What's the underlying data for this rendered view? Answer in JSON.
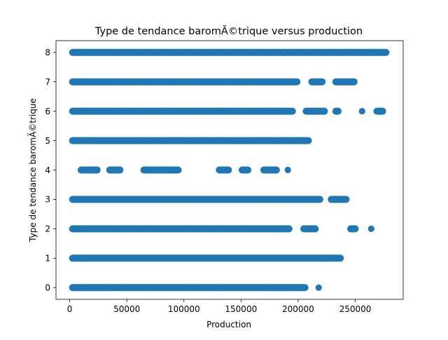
{
  "chart_data": {
    "type": "scatter",
    "title": "Type de tendance baromÃ©trique versus production",
    "xlabel": "Production",
    "ylabel": "Type de tendance baromÃ©trique",
    "xlim": [
      -12000,
      292000
    ],
    "ylim": [
      -0.4,
      8.4
    ],
    "x_ticks": [
      0,
      50000,
      100000,
      150000,
      200000,
      250000
    ],
    "y_ticks": [
      0,
      1,
      2,
      3,
      4,
      5,
      6,
      7,
      8
    ],
    "grid": false,
    "legend": "none",
    "marker_color": "#1f77b4",
    "series": [
      {
        "levels": [
          {
            "y": 8,
            "x": [
              2500,
              5000,
              8000,
              12000,
              16000,
              20000,
              25000,
              30000,
              36000,
              42000,
              48000,
              55000,
              62000,
              70000,
              78000,
              86000,
              94000,
              102000,
              110000,
              118000,
              126000,
              134000,
              142000,
              150000,
              158000,
              166000,
              174000,
              182000,
              188000,
              195000,
              203000,
              212000,
              218000,
              224000,
              233000,
              239000,
              247000,
              252000,
              258000,
              264000,
              267000,
              270000,
              277000
            ]
          },
          {
            "y": 7,
            "x": [
              2500,
              5000,
              8000,
              12000,
              16000,
              20000,
              25000,
              30000,
              36000,
              42000,
              48000,
              55000,
              62000,
              70000,
              78000,
              86000,
              94000,
              102000,
              110000,
              118000,
              126000,
              134000,
              142000,
              150000,
              158000,
              166000,
              174000,
              180000,
              186000,
              192000,
              199000,
              212000,
              214000,
              221000,
              233000,
              235000,
              242000,
              249000
            ]
          },
          {
            "y": 6,
            "x": [
              2500,
              5000,
              8000,
              12000,
              16000,
              20000,
              25000,
              30000,
              36000,
              42000,
              48000,
              55000,
              62000,
              70000,
              78000,
              86000,
              94000,
              102000,
              110000,
              118000,
              126000,
              134000,
              142000,
              150000,
              158000,
              166000,
              172000,
              178000,
              183000,
              187000,
              195000,
              207000,
              211000,
              214000,
              223000,
              233000,
              235000,
              256000,
              269000,
              274000
            ]
          },
          {
            "y": 5,
            "x": [
              2500,
              5000,
              8000,
              12000,
              16000,
              20000,
              25000,
              30000,
              36000,
              42000,
              48000,
              55000,
              62000,
              70000,
              78000,
              86000,
              94000,
              102000,
              110000,
              118000,
              126000,
              134000,
              142000,
              150000,
              158000,
              165000,
              169000,
              173000,
              178000,
              184000,
              187000,
              192000,
              200000,
              203000,
              209000
            ]
          },
          {
            "y": 4,
            "x": [
              10000,
              15000,
              20000,
              24000,
              35000,
              43000,
              44000,
              65000,
              68000,
              70000,
              75000,
              78000,
              79000,
              81000,
              85000,
              87000,
              92000,
              95000,
              131000,
              139000,
              151000,
              153000,
              156000,
              170000,
              172000,
              181000,
              191000
            ]
          },
          {
            "y": 3,
            "x": [
              2500,
              5000,
              8000,
              12000,
              16000,
              20000,
              25000,
              30000,
              36000,
              42000,
              48000,
              55000,
              62000,
              70000,
              78000,
              86000,
              94000,
              102000,
              110000,
              118000,
              126000,
              134000,
              142000,
              150000,
              158000,
              166000,
              174000,
              182000,
              190000,
              197000,
              202000,
              209000,
              213000,
              219000,
              229000,
              233000,
              237000,
              242000
            ]
          },
          {
            "y": 2,
            "x": [
              2500,
              5000,
              8000,
              12000,
              16000,
              20000,
              25000,
              30000,
              36000,
              42000,
              48000,
              55000,
              62000,
              70000,
              78000,
              86000,
              94000,
              102000,
              110000,
              118000,
              126000,
              134000,
              142000,
              150000,
              158000,
              164000,
              170000,
              176000,
              180000,
              183000,
              188000,
              192000,
              205000,
              210000,
              215000,
              246000,
              250000,
              264000
            ]
          },
          {
            "y": 1,
            "x": [
              2500,
              5000,
              8000,
              12000,
              16000,
              20000,
              25000,
              30000,
              36000,
              42000,
              48000,
              55000,
              62000,
              70000,
              78000,
              86000,
              94000,
              102000,
              110000,
              118000,
              126000,
              134000,
              142000,
              150000,
              158000,
              166000,
              174000,
              182000,
              190000,
              195000,
              200000,
              204000,
              211000,
              216000,
              220000,
              222000,
              230000,
              237000
            ]
          },
          {
            "y": 0,
            "x": [
              2500,
              5000,
              8000,
              12000,
              16000,
              20000,
              25000,
              30000,
              36000,
              42000,
              48000,
              55000,
              62000,
              70000,
              78000,
              86000,
              94000,
              102000,
              110000,
              118000,
              126000,
              134000,
              142000,
              150000,
              158000,
              165000,
              170000,
              177000,
              182000,
              187000,
              192000,
              198000,
              203000,
              206000,
              218000
            ]
          }
        ]
      }
    ]
  }
}
